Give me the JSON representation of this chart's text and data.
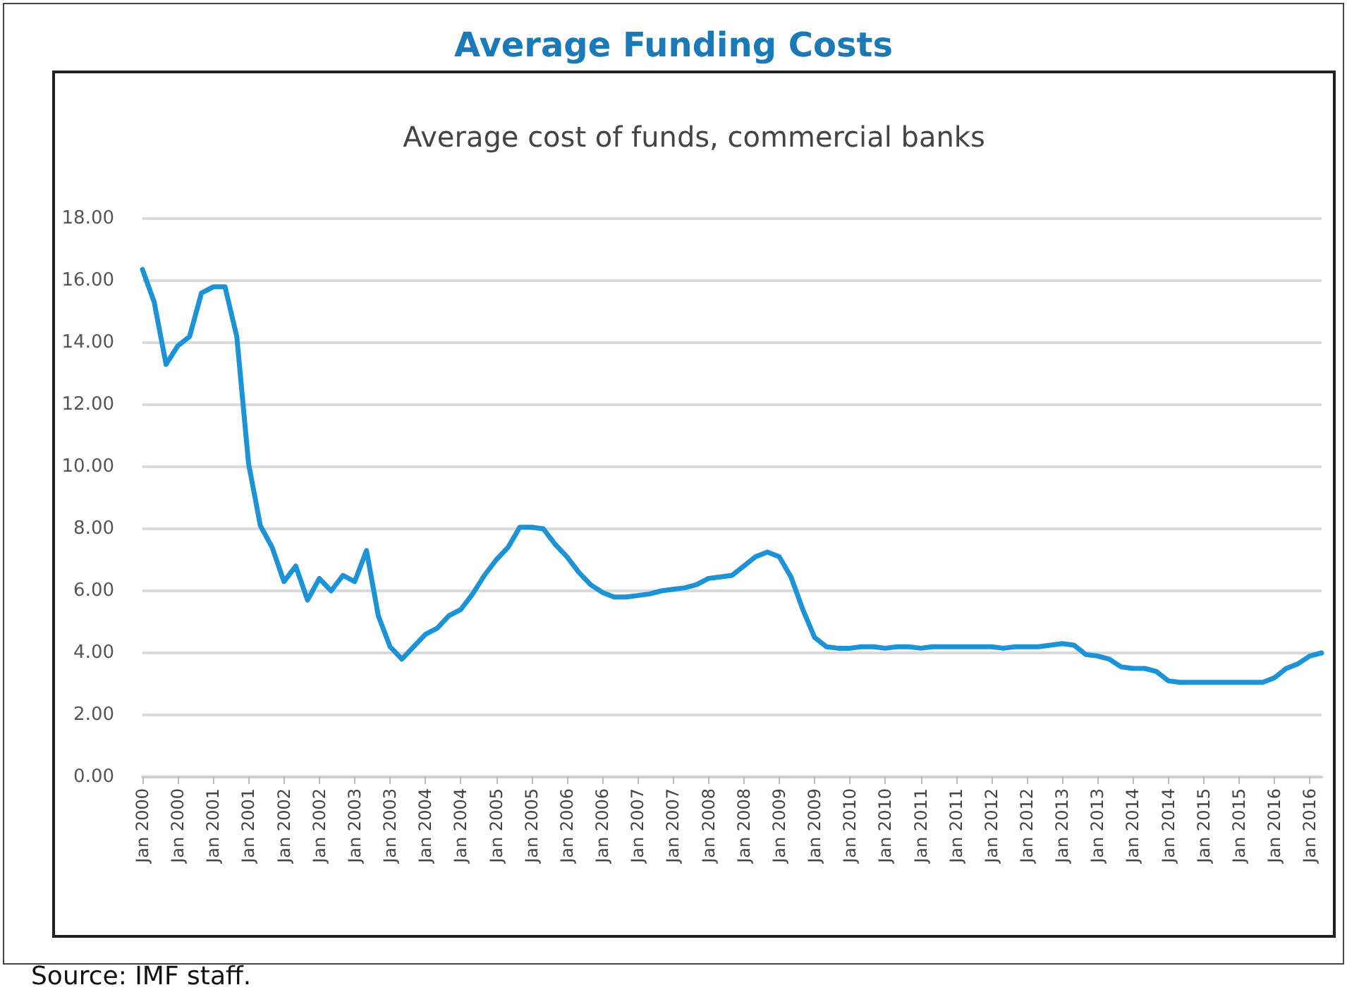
{
  "chart_data": {
    "type": "line",
    "title": "Average Funding Costs",
    "subtitle": "Average cost of funds, commercial banks",
    "annotations": [
      "Source: IMF staff."
    ],
    "categories": [
      "Jan 2000",
      null,
      null,
      "Jan 2000",
      null,
      null,
      "Jan 2001",
      null,
      null,
      "Jan 2001",
      null,
      null,
      "Jan 2002",
      null,
      null,
      "Jan 2002",
      null,
      null,
      "Jan 2003",
      null,
      null,
      "Jan 2003",
      null,
      null,
      "Jan 2004",
      null,
      null,
      "Jan 2004",
      null,
      null,
      "Jan 2005",
      null,
      null,
      "Jan 2005",
      null,
      null,
      "Jan 2006",
      null,
      null,
      "Jan 2006",
      null,
      null,
      "Jan 2007",
      null,
      null,
      "Jan 2007",
      null,
      null,
      "Jan 2008",
      null,
      null,
      "Jan 2008",
      null,
      null,
      "Jan 2009",
      null,
      null,
      "Jan 2009",
      null,
      null,
      "Jan 2010",
      null,
      null,
      "Jan 2010",
      null,
      null,
      "Jan 2011",
      null,
      null,
      "Jan 2011",
      null,
      null,
      "Jan 2012",
      null,
      null,
      "Jan 2012",
      null,
      null,
      "Jan 2013",
      null,
      null,
      "Jan 2013",
      null,
      null,
      "Jan 2014",
      null,
      null,
      "Jan 2014",
      null,
      null,
      "Jan 2015",
      null,
      null,
      "Jan 2015",
      null,
      null,
      "Jan 2016",
      null,
      null,
      "Jan 2016",
      null
    ],
    "series": [
      {
        "color": "#1b93d6",
        "values": [
          16.36,
          15.3,
          13.3,
          13.9,
          14.2,
          15.6,
          15.8,
          15.8,
          14.2,
          10.1,
          8.1,
          7.4,
          6.3,
          6.8,
          5.7,
          6.4,
          6.0,
          6.5,
          6.3,
          7.3,
          5.2,
          4.2,
          3.8,
          4.2,
          4.6,
          4.8,
          5.2,
          5.4,
          5.9,
          6.5,
          7.0,
          7.4,
          8.05,
          8.05,
          8.0,
          7.5,
          7.1,
          6.6,
          6.2,
          5.95,
          5.8,
          5.8,
          5.85,
          5.9,
          6.0,
          6.05,
          6.1,
          6.2,
          6.4,
          6.45,
          6.5,
          6.8,
          7.1,
          7.25,
          7.1,
          6.45,
          5.4,
          4.5,
          4.2,
          4.15,
          4.15,
          4.2,
          4.2,
          4.15,
          4.2,
          4.2,
          4.15,
          4.2,
          4.2,
          4.2,
          4.2,
          4.2,
          4.2,
          4.15,
          4.2,
          4.2,
          4.2,
          4.25,
          4.3,
          4.25,
          3.95,
          3.9,
          3.8,
          3.55,
          3.5,
          3.5,
          3.4,
          3.1,
          3.05,
          3.05,
          3.05,
          3.05,
          3.05,
          3.05,
          3.05,
          3.05,
          3.2,
          3.5,
          3.65,
          3.9,
          4.0
        ]
      }
    ],
    "ylim": [
      0,
      18
    ],
    "yticks": [
      {
        "value": 0,
        "label": "0.00"
      },
      {
        "value": 2,
        "label": "2.00"
      },
      {
        "value": 4,
        "label": "4.00"
      },
      {
        "value": 6,
        "label": "6.00"
      },
      {
        "value": 8,
        "label": "8.00"
      },
      {
        "value": 10,
        "label": "10.00"
      },
      {
        "value": 12,
        "label": "12.00"
      },
      {
        "value": 14,
        "label": "14.00"
      },
      {
        "value": 16,
        "label": "16.00"
      },
      {
        "value": 18,
        "label": "18.00"
      }
    ],
    "grid": "y",
    "marker": "none",
    "line_style": "solid"
  }
}
